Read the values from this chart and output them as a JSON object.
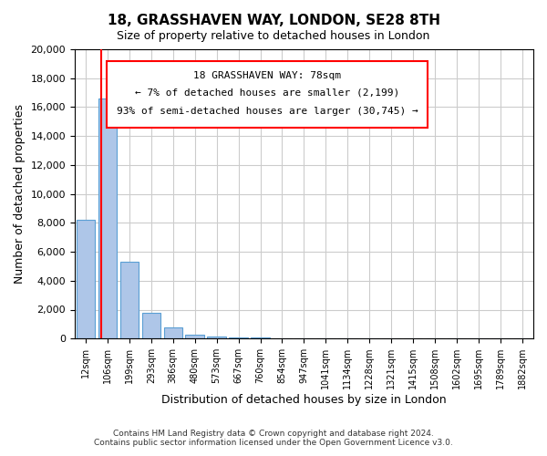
{
  "title": "18, GRASSHAVEN WAY, LONDON, SE28 8TH",
  "subtitle": "Size of property relative to detached houses in London",
  "xlabel": "Distribution of detached houses by size in London",
  "ylabel": "Number of detached properties",
  "bar_values": [
    8200,
    16600,
    5300,
    1800,
    750,
    250,
    150,
    100,
    50,
    0,
    0,
    0,
    0,
    0,
    0,
    0,
    0,
    0,
    0,
    0,
    0
  ],
  "bar_labels": [
    "12sqm",
    "106sqm",
    "199sqm",
    "293sqm",
    "386sqm",
    "480sqm",
    "573sqm",
    "667sqm",
    "760sqm",
    "854sqm",
    "947sqm",
    "1041sqm",
    "1134sqm",
    "1228sqm",
    "1321sqm",
    "1415sqm",
    "1508sqm",
    "1602sqm",
    "1695sqm",
    "1789sqm",
    "1882sqm"
  ],
  "bar_color": "#aec6e8",
  "bar_edge_color": "#5a9fd4",
  "ylim": [
    0,
    20000
  ],
  "yticks": [
    0,
    2000,
    4000,
    6000,
    8000,
    10000,
    12000,
    14000,
    16000,
    18000,
    20000
  ],
  "red_line_x": 0.73,
  "annotation_title": "18 GRASSHAVEN WAY: 78sqm",
  "annotation_line1": "← 7% of detached houses are smaller (2,199)",
  "annotation_line2": "93% of semi-detached houses are larger (30,745) →",
  "footer_line1": "Contains HM Land Registry data © Crown copyright and database right 2024.",
  "footer_line2": "Contains public sector information licensed under the Open Government Licence v3.0.",
  "background_color": "#ffffff",
  "grid_color": "#cccccc"
}
